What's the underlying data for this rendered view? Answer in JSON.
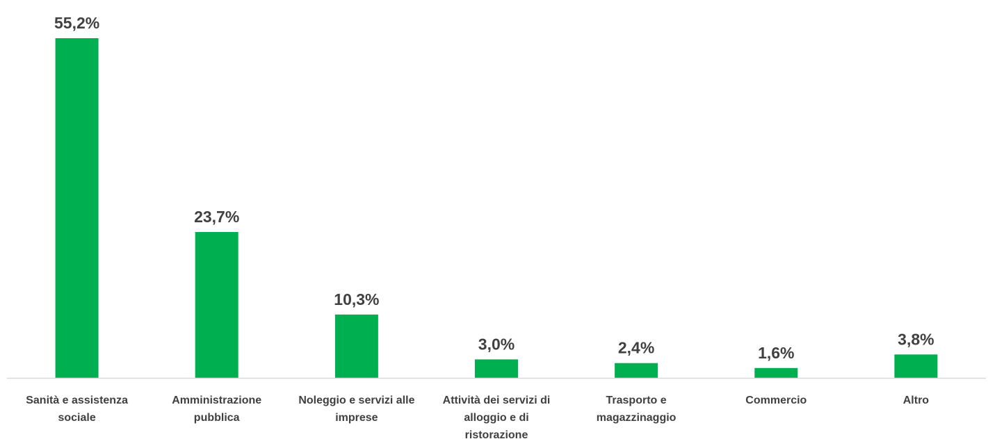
{
  "chart_data": {
    "type": "bar",
    "categories": [
      [
        "Sanità e assistenza",
        "sociale"
      ],
      [
        "Amministrazione",
        "pubblica"
      ],
      [
        "Noleggio e servizi alle",
        "imprese"
      ],
      [
        "Attività dei servizi di",
        "alloggio e di",
        "ristorazione"
      ],
      [
        "Trasporto e",
        "magazzinaggio"
      ],
      [
        "Commercio"
      ],
      [
        "Altro"
      ]
    ],
    "values": [
      55.2,
      23.7,
      10.3,
      3.0,
      2.4,
      1.6,
      3.8
    ],
    "value_labels": [
      "55,2%",
      "23,7%",
      "10,3%",
      "3,0%",
      "2,4%",
      "1,6%",
      "3,8%"
    ],
    "ylim": [
      0,
      55.2
    ],
    "grid": false,
    "legend": "none",
    "colors": {
      "bar": "#00B050",
      "axis": "#D9D9D9",
      "text": "#404040"
    }
  }
}
